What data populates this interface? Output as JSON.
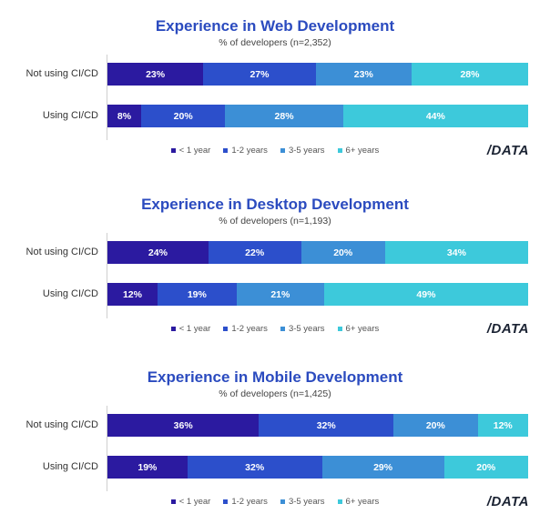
{
  "legend": [
    "< 1 year",
    "1-2 years",
    "3-5 years",
    "6+ years"
  ],
  "colors": [
    "#2b1aa0",
    "#2c4fcb",
    "#3c8fd6",
    "#3dc9db"
  ],
  "logo_text": "/DATA",
  "chart_data": [
    {
      "type": "bar",
      "orientation": "horizontal",
      "stacked": true,
      "title": "Experience in Web Development",
      "subtitle": "% of developers (n=2,352)",
      "categories": [
        "Not using CI/CD",
        "Using CI/CD"
      ],
      "series": [
        {
          "name": "< 1 year",
          "values": [
            23,
            8
          ]
        },
        {
          "name": "1-2 years",
          "values": [
            27,
            20
          ]
        },
        {
          "name": "3-5 years",
          "values": [
            23,
            28
          ]
        },
        {
          "name": "6+ years",
          "values": [
            28,
            44
          ]
        }
      ],
      "value_labels": [
        [
          "23%",
          "27%",
          "23%",
          "28%"
        ],
        [
          "8%",
          "20%",
          "28%",
          "44%"
        ]
      ],
      "legend_position": "bottom"
    },
    {
      "type": "bar",
      "orientation": "horizontal",
      "stacked": true,
      "title": "Experience in Desktop Development",
      "subtitle": "% of developers (n=1,193)",
      "categories": [
        "Not using CI/CD",
        "Using CI/CD"
      ],
      "series": [
        {
          "name": "< 1 year",
          "values": [
            24,
            12
          ]
        },
        {
          "name": "1-2 years",
          "values": [
            22,
            19
          ]
        },
        {
          "name": "3-5 years",
          "values": [
            20,
            21
          ]
        },
        {
          "name": "6+ years",
          "values": [
            34,
            49
          ]
        }
      ],
      "value_labels": [
        [
          "24%",
          "22%",
          "20%",
          "34%"
        ],
        [
          "12%",
          "19%",
          "21%",
          "49%"
        ]
      ],
      "legend_position": "bottom"
    },
    {
      "type": "bar",
      "orientation": "horizontal",
      "stacked": true,
      "title": "Experience in Mobile Development",
      "subtitle": "% of developers (n=1,425)",
      "categories": [
        "Not using CI/CD",
        "Using CI/CD"
      ],
      "series": [
        {
          "name": "< 1 year",
          "values": [
            36,
            19
          ]
        },
        {
          "name": "1-2 years",
          "values": [
            32,
            32
          ]
        },
        {
          "name": "3-5 years",
          "values": [
            20,
            29
          ]
        },
        {
          "name": "6+ years",
          "values": [
            12,
            20
          ]
        }
      ],
      "value_labels": [
        [
          "36%",
          "32%",
          "20%",
          "12%"
        ],
        [
          "19%",
          "32%",
          "29%",
          "20%"
        ]
      ],
      "legend_position": "bottom"
    }
  ]
}
